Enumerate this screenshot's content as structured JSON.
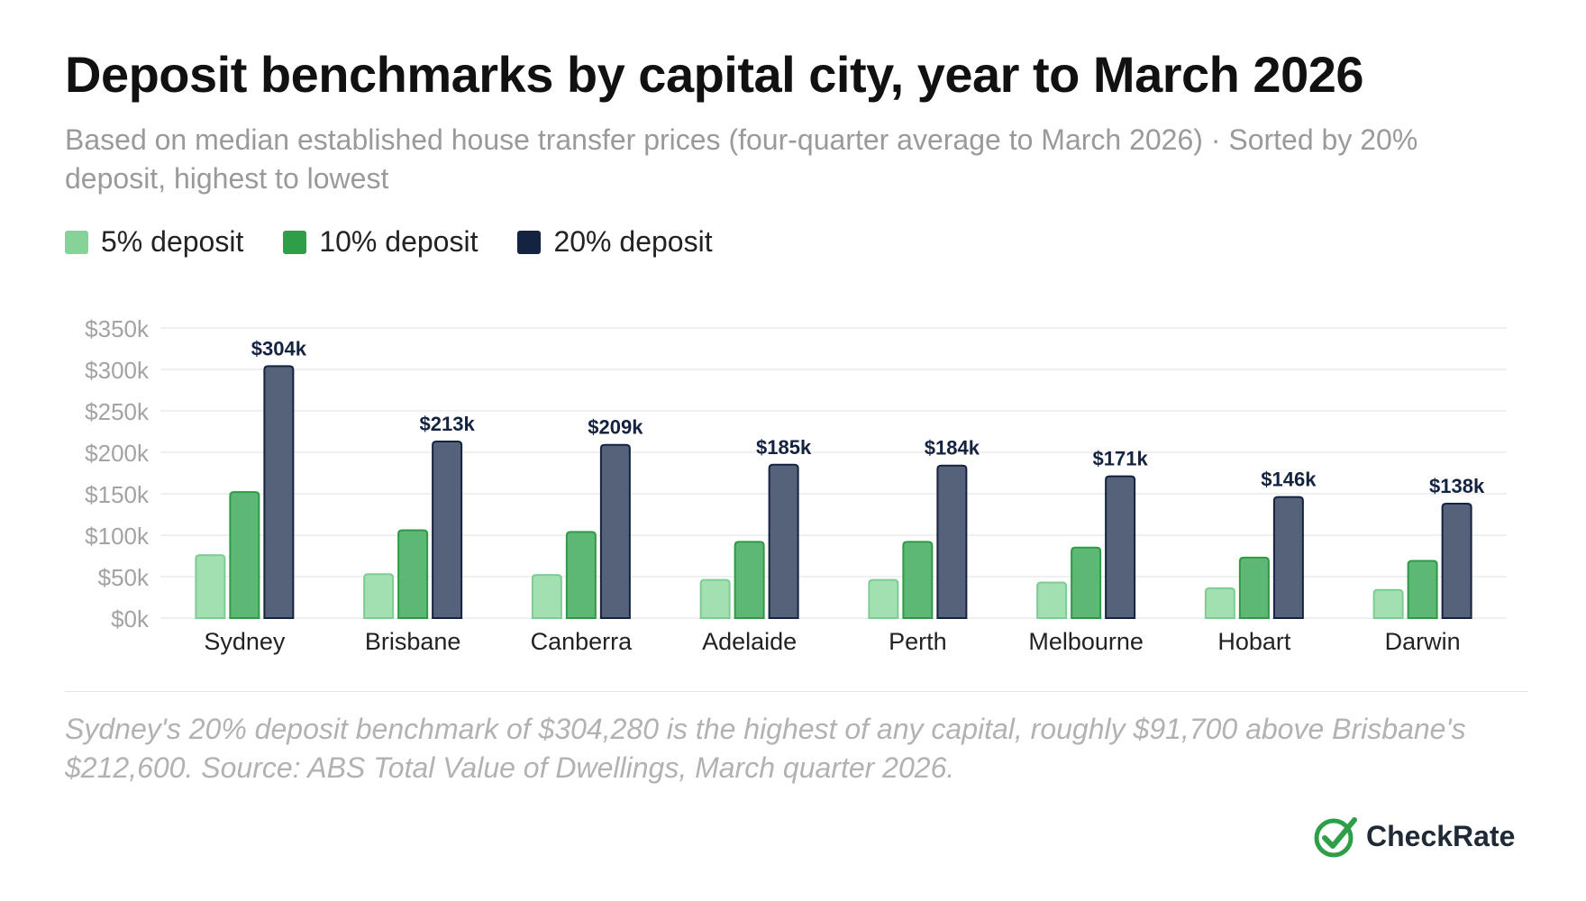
{
  "header": {
    "title": "Deposit benchmarks by capital city, year to March 2026",
    "subtitle": "Based on median established house transfer prices (four-quarter average to March 2026) · Sorted by 20% deposit, highest to lowest"
  },
  "legend": [
    {
      "label": "5% deposit",
      "color": "#86d39a"
    },
    {
      "label": "10% deposit",
      "color": "#2f9e48"
    },
    {
      "label": "20% deposit",
      "color": "#14233f"
    }
  ],
  "chart_data": {
    "type": "bar",
    "categories": [
      "Sydney",
      "Brisbane",
      "Canberra",
      "Adelaide",
      "Perth",
      "Melbourne",
      "Hobart",
      "Darwin"
    ],
    "series": [
      {
        "name": "5% deposit",
        "color": "#86d39a",
        "values": [
          76,
          53,
          52,
          46,
          46,
          43,
          36,
          34
        ]
      },
      {
        "name": "10% deposit",
        "color": "#2f9e48",
        "values": [
          152,
          106,
          104,
          92,
          92,
          85,
          73,
          69
        ]
      },
      {
        "name": "20% deposit",
        "color": "#14233f",
        "values": [
          304,
          213,
          209,
          185,
          184,
          171,
          146,
          138
        ],
        "data_labels": [
          "$304k",
          "$213k",
          "$209k",
          "$185k",
          "$184k",
          "$171k",
          "$146k",
          "$138k"
        ]
      }
    ],
    "y_ticks": [
      0,
      50,
      100,
      150,
      200,
      250,
      300,
      350
    ],
    "y_tick_labels": [
      "$0k",
      "$50k",
      "$100k",
      "$150k",
      "$200k",
      "$250k",
      "$300k",
      "$350k"
    ],
    "ylim": [
      0,
      350
    ],
    "unit": "$k",
    "grid": true,
    "legend_position": "top-left"
  },
  "footnote": "Sydney's 20% deposit benchmark of $304,280 is the highest of any capital, roughly $91,700 above Brisbane's $212,600. Source: ABS Total Value of Dwellings, March quarter 2026.",
  "brand": {
    "name": "CheckRate",
    "logo_icon": "check-circle-icon",
    "color": "#2f9e48"
  }
}
